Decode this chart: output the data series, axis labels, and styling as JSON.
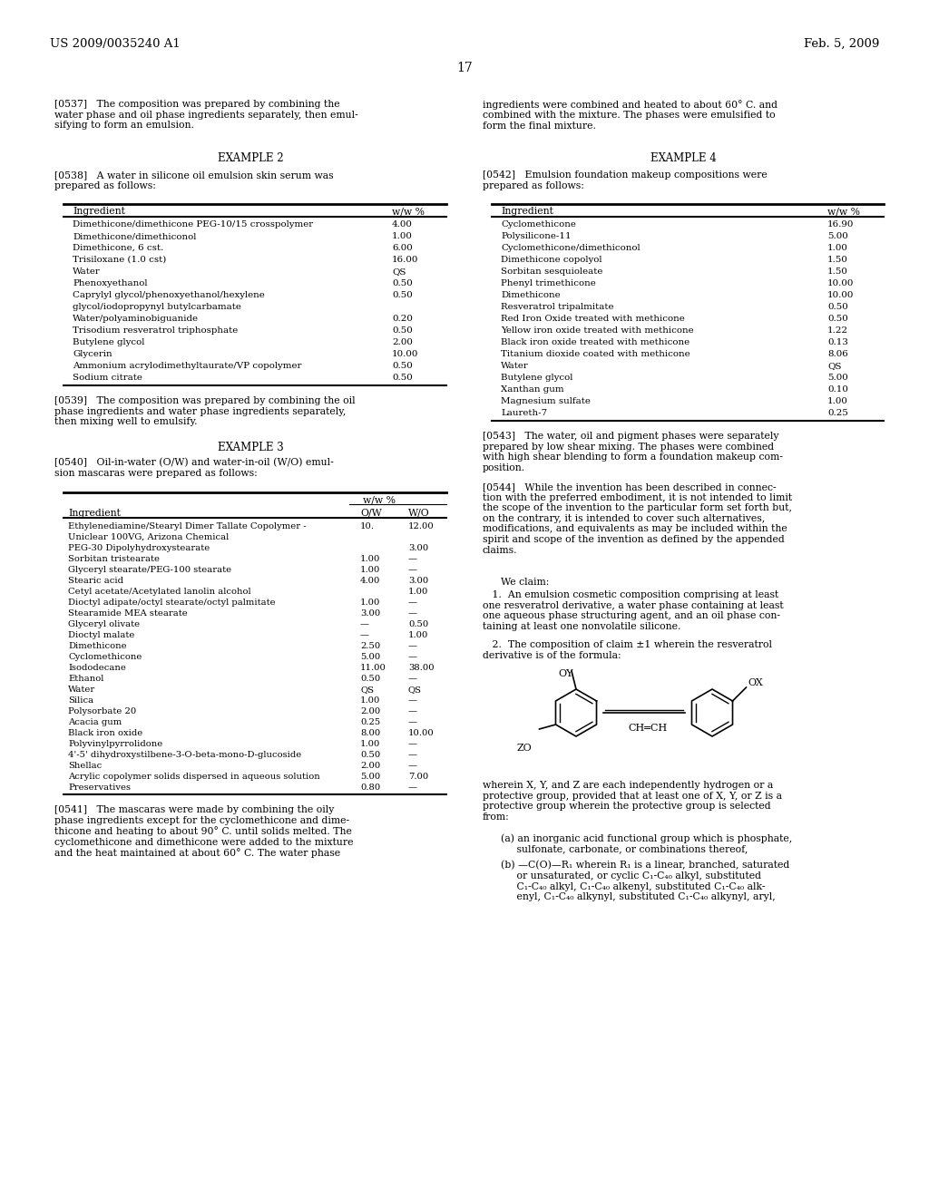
{
  "page_header_left": "US 2009/0035240 A1",
  "page_header_right": "Feb. 5, 2009",
  "page_number": "17",
  "table2_rows": [
    [
      "Dimethicone/dimethicone PEG-10/15 crosspolymer",
      "4.00"
    ],
    [
      "Dimethicone/dimethiconol",
      "1.00"
    ],
    [
      "Dimethicone, 6 cst.",
      "6.00"
    ],
    [
      "Trisiloxane (1.0 cst)",
      "16.00"
    ],
    [
      "Water",
      "QS"
    ],
    [
      "Phenoxyethanol",
      "0.50"
    ],
    [
      "Caprylyl glycol/phenoxyethanol/hexylene",
      "0.50"
    ],
    [
      "glycol/iodopropynyl butylcarbamate",
      ""
    ],
    [
      "Water/polyaminobiguanide",
      "0.20"
    ],
    [
      "Trisodium resveratrol triphosphate",
      "0.50"
    ],
    [
      "Butylene glycol",
      "2.00"
    ],
    [
      "Glycerin",
      "10.00"
    ],
    [
      "Ammonium acrylodimethyltaurate/VP copolymer",
      "0.50"
    ],
    [
      "Sodium citrate",
      "0.50"
    ]
  ],
  "table3_rows": [
    [
      "Ethylenediamine/Stearyl Dimer Tallate Copolymer -",
      "10.",
      "12.00"
    ],
    [
      "Uniclear 100VG, Arizona Chemical",
      "",
      ""
    ],
    [
      "PEG-30 Dipolyhydroxystearate",
      "",
      "3.00"
    ],
    [
      "Sorbitan tristearate",
      "1.00",
      "—"
    ],
    [
      "Glyceryl stearate/PEG-100 stearate",
      "1.00",
      "—"
    ],
    [
      "Stearic acid",
      "4.00",
      "3.00"
    ],
    [
      "Cetyl acetate/Acetylated lanolin alcohol",
      "",
      "1.00"
    ],
    [
      "Dioctyl adipate/octyl stearate/octyl palmitate",
      "1.00",
      "—"
    ],
    [
      "Stearamide MEA stearate",
      "3.00",
      "—"
    ],
    [
      "Glyceryl olivate",
      "—",
      "0.50"
    ],
    [
      "Dioctyl malate",
      "—",
      "1.00"
    ],
    [
      "Dimethicone",
      "2.50",
      "—"
    ],
    [
      "Cyclomethicone",
      "5.00",
      "—"
    ],
    [
      "Isododecane",
      "11.00",
      "38.00"
    ],
    [
      "Ethanol",
      "0.50",
      "—"
    ],
    [
      "Water",
      "QS",
      "QS"
    ],
    [
      "Silica",
      "1.00",
      "—"
    ],
    [
      "Polysorbate 20",
      "2.00",
      "—"
    ],
    [
      "Acacia gum",
      "0.25",
      "—"
    ],
    [
      "Black iron oxide",
      "8.00",
      "10.00"
    ],
    [
      "Polyvinylpyrrolidone",
      "1.00",
      "—"
    ],
    [
      "4'-5' dihydroxystilbene-3-O-beta-mono-D-glucoside",
      "0.50",
      "—"
    ],
    [
      "Shellac",
      "2.00",
      "—"
    ],
    [
      "Acrylic copolymer solids dispersed in aqueous solution",
      "5.00",
      "7.00"
    ],
    [
      "Preservatives",
      "0.80",
      "—"
    ]
  ],
  "table4_rows": [
    [
      "Cyclomethicone",
      "16.90"
    ],
    [
      "Polysilicone-11",
      "5.00"
    ],
    [
      "Cyclomethicone/dimethiconol",
      "1.00"
    ],
    [
      "Dimethicone copolyol",
      "1.50"
    ],
    [
      "Sorbitan sesquioleate",
      "1.50"
    ],
    [
      "Phenyl trimethicone",
      "10.00"
    ],
    [
      "Dimethicone",
      "10.00"
    ],
    [
      "Resveratrol tripalmitate",
      "0.50"
    ],
    [
      "Red Iron Oxide treated with methicone",
      "0.50"
    ],
    [
      "Yellow iron oxide treated with methicone",
      "1.22"
    ],
    [
      "Black iron oxide treated with methicone",
      "0.13"
    ],
    [
      "Titanium dioxide coated with methicone",
      "8.06"
    ],
    [
      "Water",
      "QS"
    ],
    [
      "Butylene glycol",
      "5.00"
    ],
    [
      "Xanthan gum",
      "0.10"
    ],
    [
      "Magnesium sulfate",
      "1.00"
    ],
    [
      "Laureth-7",
      "0.25"
    ]
  ]
}
